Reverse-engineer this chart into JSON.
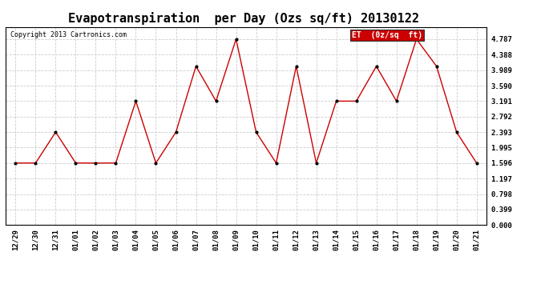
{
  "title": "Evapotranspiration  per Day (Ozs sq/ft) 20130122",
  "copyright_text": "Copyright 2013 Cartronics.com",
  "legend_label": "ET  (0z/sq  ft)",
  "legend_bg": "#cc0000",
  "legend_text_color": "#ffffff",
  "x_labels": [
    "12/29",
    "12/30",
    "12/31",
    "01/01",
    "01/02",
    "01/03",
    "01/04",
    "01/05",
    "01/06",
    "01/07",
    "01/08",
    "01/09",
    "01/10",
    "01/11",
    "01/12",
    "01/13",
    "01/14",
    "01/15",
    "01/16",
    "01/17",
    "01/18",
    "01/19",
    "01/20",
    "01/21"
  ],
  "y_values": [
    1.596,
    1.596,
    2.393,
    1.596,
    1.596,
    1.596,
    3.191,
    1.596,
    2.393,
    4.089,
    3.191,
    4.787,
    2.393,
    1.596,
    4.089,
    1.596,
    3.191,
    3.191,
    4.089,
    3.191,
    4.787,
    4.089,
    2.393,
    1.596
  ],
  "line_color": "#cc0000",
  "marker_color": "#000000",
  "marker_style": "o",
  "marker_size": 2,
  "line_width": 1.0,
  "background_color": "#ffffff",
  "grid_color": "#cccccc",
  "grid_style": "--",
  "y_ticks": [
    0.0,
    0.399,
    0.798,
    1.197,
    1.596,
    1.995,
    2.393,
    2.792,
    3.191,
    3.59,
    3.989,
    4.388,
    4.787
  ],
  "ylim": [
    0.0,
    5.1
  ],
  "title_fontsize": 11,
  "tick_fontsize": 6.5,
  "copyright_fontsize": 6,
  "legend_fontsize": 7
}
